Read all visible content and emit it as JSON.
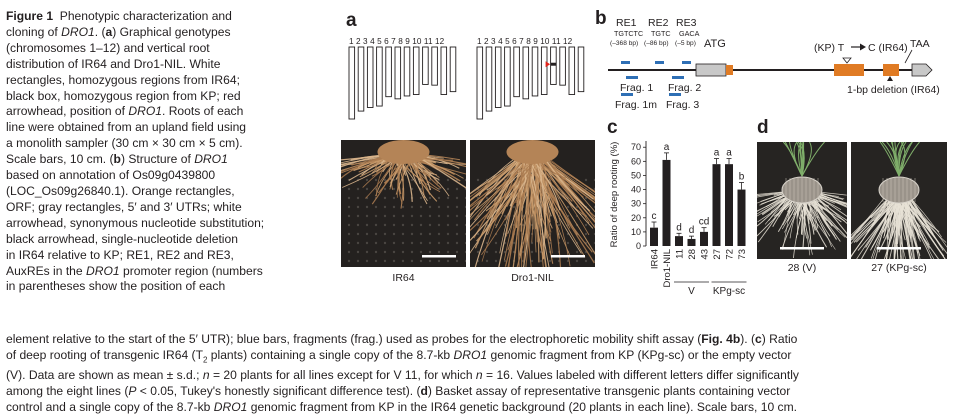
{
  "caption": {
    "fig_label": "Figure 1",
    "side_lines": [
      [
        {
          "t": "Figure 1",
          "b": true
        },
        {
          "t": "  Phenotypic characterization and"
        }
      ],
      [
        {
          "t": "cloning of "
        },
        {
          "t": "DRO1",
          "i": true
        },
        {
          "t": ". ("
        },
        {
          "t": "a",
          "b": true
        },
        {
          "t": ") Graphical genotypes"
        }
      ],
      [
        {
          "t": "(chromosomes 1–12) and vertical root"
        }
      ],
      [
        {
          "t": "distribution of IR64 and Dro1-NIL. White"
        }
      ],
      [
        {
          "t": "rectangles, homozygous regions from IR64;"
        }
      ],
      [
        {
          "t": "black box, homozygous region from KP; red"
        }
      ],
      [
        {
          "t": "arrowhead, position of "
        },
        {
          "t": "DRO1",
          "i": true
        },
        {
          "t": ". Roots of each"
        }
      ],
      [
        {
          "t": "line were obtained from an upland field using"
        }
      ],
      [
        {
          "t": "a monolith sampler (30 cm × 30 cm × 5 cm)."
        }
      ],
      [
        {
          "t": "Scale bars, 10 cm. ("
        },
        {
          "t": "b",
          "b": true
        },
        {
          "t": ") Structure of "
        },
        {
          "t": "DRO1",
          "i": true
        }
      ],
      [
        {
          "t": "based on annotation of Os09g0439800"
        }
      ],
      [
        {
          "t": "(LOC_Os09g26840.1). Orange rectangles,"
        }
      ],
      [
        {
          "t": "ORF; gray rectangles, 5′ and 3′ UTRs; white"
        }
      ],
      [
        {
          "t": "arrowhead, synonymous nucleotide substitution;"
        }
      ],
      [
        {
          "t": "black arrowhead, single-nucleotide deletion"
        }
      ],
      [
        {
          "t": "in IR64 relative to KP; RE1, RE2 and RE3,"
        }
      ],
      [
        {
          "t": "AuxREs in the "
        },
        {
          "t": "DRO1",
          "i": true
        },
        {
          "t": " promoter region (numbers"
        }
      ],
      [
        {
          "t": "in parentheses show the position of each"
        }
      ]
    ],
    "bottom_lines": [
      [
        {
          "t": "element relative to the start of the 5′ UTR); blue bars, fragments (frag.) used as probes for the electrophoretic mobility shift assay ("
        },
        {
          "t": "Fig. 4b",
          "b": true
        },
        {
          "t": "). ("
        },
        {
          "t": "c",
          "b": true
        },
        {
          "t": ") Ratio"
        }
      ],
      [
        {
          "t": "of deep rooting of transgenic IR64 (T"
        },
        {
          "t": "2",
          "sub": true
        },
        {
          "t": " plants) containing a single copy of the 8.7-kb "
        },
        {
          "t": "DRO1",
          "i": true
        },
        {
          "t": " genomic fragment from KP (KPg-sc) or the empty vector"
        }
      ],
      [
        {
          "t": "(V). Data are shown as mean ± s.d.; "
        },
        {
          "t": "n",
          "i": true
        },
        {
          "t": " = 20 plants for all lines except for V 11, for which "
        },
        {
          "t": "n",
          "i": true
        },
        {
          "t": " = 16. Values labeled with different letters differ significantly"
        }
      ],
      [
        {
          "t": "among the eight lines ("
        },
        {
          "t": "P",
          "i": true
        },
        {
          "t": " < 0.05, Tukey's honestly significant difference test). ("
        },
        {
          "t": "d",
          "b": true
        },
        {
          "t": ") Basket assay of representative transgenic plants containing vector"
        }
      ],
      [
        {
          "t": "control and a single copy of the 8.7-kb "
        },
        {
          "t": "DRO1",
          "i": true
        },
        {
          "t": " genomic fragment from KP in the IR64 genetic background (20 plants in each line). Scale bars, 10 cm."
        }
      ]
    ]
  },
  "panel_a": {
    "letter": "a",
    "chromosome_numbers": "1 2 3 4 5 6 7 8 9 10 11 12",
    "chromosome_lengths_rel": [
      1.0,
      0.89,
      0.84,
      0.82,
      0.69,
      0.72,
      0.68,
      0.66,
      0.52,
      0.53,
      0.66,
      0.62
    ],
    "genotypes": [
      {
        "name": "IR64",
        "kp_segment": null
      },
      {
        "name": "Dro1-NIL",
        "kp_segment": {
          "chromosome": 9,
          "from": 0.42,
          "to": 0.5
        }
      }
    ],
    "drop_position": {
      "chromosome": 9,
      "at": 0.46
    },
    "marker_color": "#e2231a",
    "photo_labels": [
      "IR64",
      "Dro1-NIL"
    ]
  },
  "panel_b": {
    "letter": "b",
    "re_elements": [
      {
        "name": "RE1",
        "seq": "TGTCTC",
        "pos": "(–368 bp)"
      },
      {
        "name": "RE2",
        "seq": "TGTC",
        "pos": "(–86 bp)"
      },
      {
        "name": "RE3",
        "seq": "GACA",
        "pos": "(–5 bp)"
      }
    ],
    "atg_label": "ATG",
    "kp_label": "(KP) T",
    "kp_label_to": "C (IR64)",
    "taa_label": "TAA",
    "deletion_label": "1-bp deletion (IR64)",
    "fragments": [
      "Frag. 1",
      "Frag. 2",
      "Frag. 1m",
      "Frag. 3"
    ],
    "orf_color": "#e07b24",
    "utr_color": "#c8c8c8",
    "fragment_color": "#2e6fb5"
  },
  "panel_c": {
    "letter": "c",
    "group_labels": [
      "V",
      "KPg-sc"
    ]
  },
  "panel_d": {
    "letter": "d",
    "labels": [
      "28 (V)",
      "27 (KPg-sc)"
    ]
  },
  "chart_data": {
    "type": "bar",
    "categories": [
      "IR64",
      "Dro1-NIL",
      "11",
      "28",
      "43",
      "27",
      "72",
      "73"
    ],
    "values": [
      13,
      61,
      7,
      5,
      10,
      58,
      58,
      40
    ],
    "errors": [
      4,
      5,
      2,
      2,
      3,
      4,
      4,
      5
    ],
    "letters": [
      "c",
      "a",
      "d",
      "d",
      "cd",
      "a",
      "a",
      "b"
    ],
    "groups": [
      {
        "label": "V",
        "categories": [
          "11",
          "28",
          "43"
        ]
      },
      {
        "label": "KPg-sc",
        "categories": [
          "27",
          "72",
          "73"
        ]
      }
    ],
    "ylabel": "Ratio of deep rooting (%)",
    "yticks": [
      0,
      10,
      20,
      30,
      40,
      50,
      60,
      70
    ],
    "ylim": [
      0,
      73
    ],
    "bar_color": "#231f20"
  }
}
